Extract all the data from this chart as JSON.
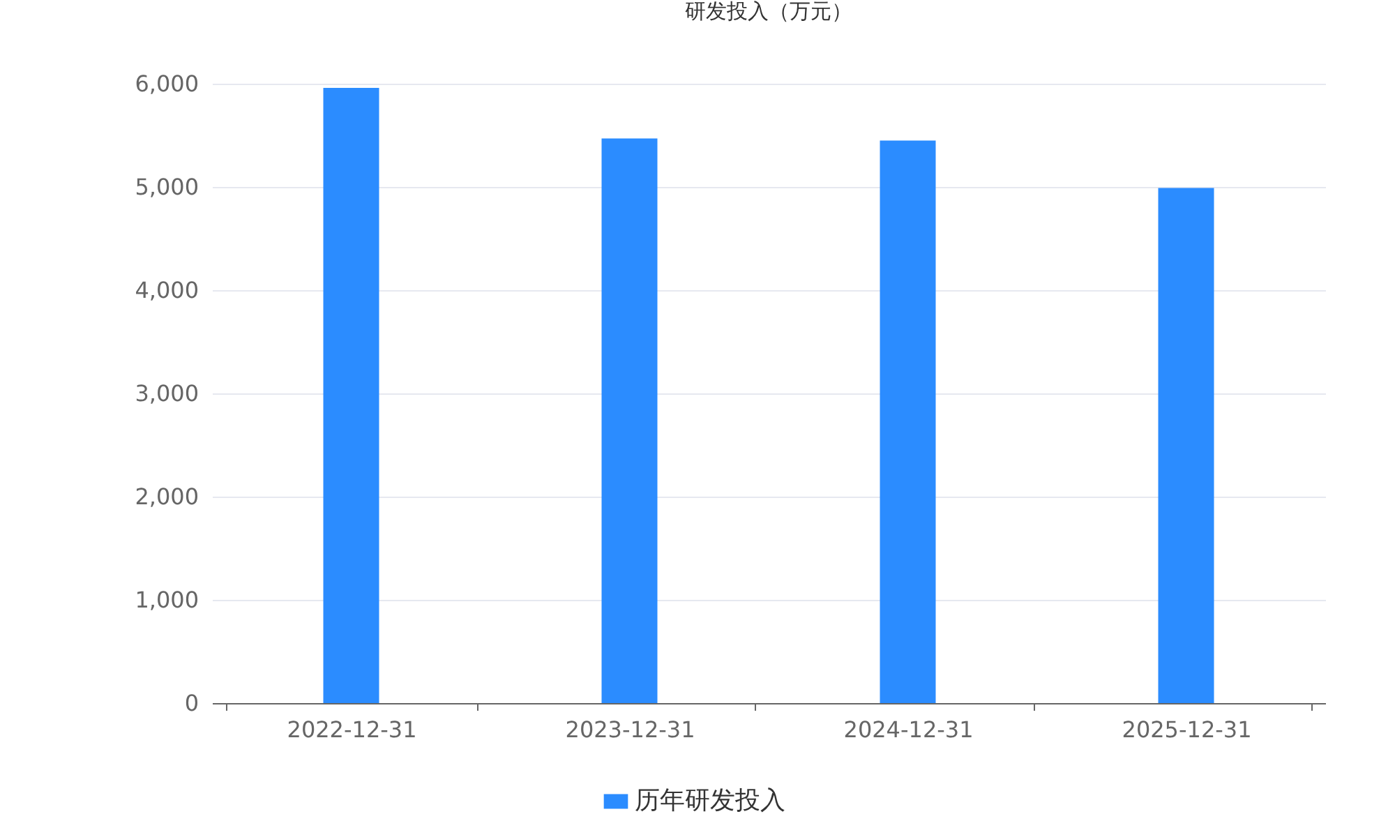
{
  "chart_data": {
    "type": "bar",
    "title": "研发投入（万元）",
    "categories": [
      "2022-12-31",
      "2023-12-31",
      "2024-12-31",
      "2025-12-31"
    ],
    "series": [
      {
        "name": "历年研发投入",
        "color": "#2b8cff",
        "values": [
          5960,
          5470,
          5450,
          4990
        ]
      }
    ],
    "ylim": [
      0,
      6000
    ],
    "yticks": [
      0,
      {
        "value": 1000,
        "label": "1,000"
      },
      {
        "value": 2000,
        "label": "2,000"
      },
      {
        "value": 3000,
        "label": "3,000"
      },
      {
        "value": 4000,
        "label": "4,000"
      },
      {
        "value": 5000,
        "label": "5,000"
      },
      {
        "value": 6000,
        "label": "6,000"
      }
    ],
    "grid": "y",
    "legend": "bottom"
  }
}
